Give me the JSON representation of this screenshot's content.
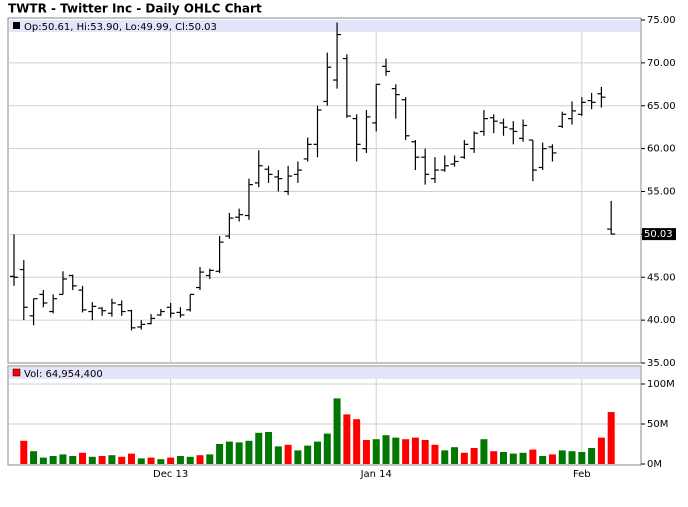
{
  "chart_data": {
    "type": "ohlc",
    "title": "TWTR - Twitter Inc - Daily OHLC Chart",
    "ohlc_legend": "Op:50.61, Hi:53.90, Lo:49.99, Cl:50.03",
    "categories": [
      null,
      null,
      null,
      null,
      null,
      null,
      null,
      null,
      null,
      null,
      null,
      null,
      null,
      null,
      null,
      null,
      "Dec 13",
      null,
      null,
      null,
      null,
      null,
      null,
      null,
      null,
      null,
      null,
      null,
      null,
      null,
      null,
      null,
      null,
      null,
      null,
      null,
      null,
      "Jan 14",
      null,
      null,
      null,
      null,
      null,
      null,
      null,
      null,
      null,
      null,
      null,
      null,
      null,
      null,
      null,
      null,
      null,
      null,
      null,
      null,
      "Feb",
      null,
      null,
      null
    ],
    "open": [
      45.1,
      45.9,
      40.5,
      43.0,
      41.0,
      43.0,
      45.2,
      43.5,
      41.0,
      41.4,
      40.8,
      41.8,
      41.1,
      39.2,
      39.6,
      40.6,
      41.5,
      40.9,
      41.2,
      43.8,
      45.2,
      45.7,
      49.8,
      52,
      52.2,
      56,
      57.6,
      56.7,
      55,
      57,
      58.8,
      60.5,
      65.5,
      68,
      70.5,
      63.5,
      60,
      63,
      69.6,
      67,
      65.7,
      60.8,
      59,
      56.5,
      57.5,
      58.2,
      59,
      60,
      62,
      63.6,
      63,
      62.3,
      61.2,
      61,
      57.8,
      60.2,
      62.6,
      63.5,
      64,
      65.6,
      66.4,
      50.61
    ],
    "high": [
      50,
      47,
      42.5,
      43.5,
      43,
      45.7,
      45.3,
      44,
      42.1,
      41.5,
      42.5,
      42.3,
      41.2,
      40,
      40.7,
      41.3,
      42,
      41.5,
      43,
      46.2,
      46,
      49.8,
      52.5,
      53,
      56.5,
      59.8,
      58,
      57.5,
      58,
      58.5,
      61.3,
      65,
      71.2,
      74.7,
      71,
      64,
      64.5,
      67.5,
      70.5,
      67.5,
      66,
      61,
      60,
      59,
      59.2,
      59.2,
      61,
      62,
      64.5,
      64,
      63.5,
      63.2,
      63.4,
      61,
      60.7,
      60.5,
      64.3,
      65.5,
      66,
      66.5,
      67.2,
      53.9
    ],
    "low": [
      44,
      40,
      39.4,
      41.5,
      40.8,
      43,
      43.5,
      40.9,
      40,
      40.5,
      40.4,
      40.5,
      38.8,
      38.9,
      39.5,
      40.5,
      40.3,
      40.3,
      41,
      43.5,
      44.8,
      45.5,
      49.5,
      51.5,
      51.7,
      55.5,
      56,
      55,
      54.6,
      56,
      58.5,
      59,
      65,
      67,
      63.6,
      58.5,
      59.5,
      62,
      68.5,
      63.5,
      61,
      57.5,
      55.8,
      56,
      57.3,
      57.9,
      58.8,
      59.5,
      61.5,
      61.8,
      61.5,
      60.5,
      60.8,
      56.2,
      57.5,
      58.5,
      62.4,
      62.8,
      63.8,
      64.6,
      64.8,
      49.99
    ],
    "close": [
      45,
      41.5,
      42.5,
      42,
      42.5,
      44.8,
      44,
      41.2,
      41.6,
      41.1,
      42,
      41,
      39.1,
      39.5,
      40.2,
      41,
      40.8,
      40.6,
      43,
      45.6,
      45.8,
      49.1,
      51.9,
      52.3,
      55.8,
      58,
      57,
      56.5,
      56.8,
      57.5,
      60.5,
      64.5,
      69.5,
      73.3,
      63.8,
      60.5,
      63.7,
      67.5,
      69,
      66.3,
      61.5,
      59,
      57,
      57.5,
      58,
      58.5,
      60.5,
      61.8,
      63.5,
      63.2,
      62.5,
      62,
      62.7,
      57.5,
      60,
      59.5,
      64,
      64.4,
      65.4,
      65.4,
      66,
      50.03
    ],
    "color": "#000000",
    "ylim": [
      35,
      75
    ],
    "yticks": [
      {
        "value": 35,
        "label": "35.00"
      },
      {
        "value": 40,
        "label": "40.00"
      },
      {
        "value": 45,
        "label": "45.00"
      },
      {
        "value": 50,
        "label": "50.00"
      },
      {
        "value": 55,
        "label": "55.00"
      },
      {
        "value": 60,
        "label": "60.00"
      },
      {
        "value": 65,
        "label": "65.00"
      },
      {
        "value": 70,
        "label": "70.00"
      },
      {
        "value": 75,
        "label": "75.00"
      }
    ],
    "last_price": {
      "value": 50.03,
      "label": "50.03"
    },
    "grid": true,
    "volume": {
      "legend": "Vol: 64,954,400",
      "legend_color": "#ff0000",
      "values": [
        null,
        29000000,
        16000000,
        8000000,
        10000000,
        12000000,
        10000000,
        14000000,
        9000000,
        10000000,
        11000000,
        9000000,
        13000000,
        7000000,
        8000000,
        6000000,
        8000000,
        10000000,
        9000000,
        11000000,
        12000000,
        25000000,
        28000000,
        27000000,
        29000000,
        39000000,
        40000000,
        22000000,
        24000000,
        17000000,
        23000000,
        28000000,
        38000000,
        82000000,
        62000000,
        56000000,
        30000000,
        31000000,
        36000000,
        33000000,
        31000000,
        33000000,
        30000000,
        24000000,
        17000000,
        21000000,
        14000000,
        20000000,
        31000000,
        16000000,
        15000000,
        13000000,
        14000000,
        18000000,
        10000000,
        12000000,
        17000000,
        16000000,
        15000000,
        20000000,
        33000000,
        64954400
      ],
      "colors": [
        null,
        "#ff0000",
        "#007700",
        "#007700",
        "#007700",
        "#007700",
        "#007700",
        "#ff0000",
        "#007700",
        "#ff0000",
        "#007700",
        "#ff0000",
        "#ff0000",
        "#007700",
        "#ff0000",
        "#007700",
        "#ff0000",
        "#007700",
        "#007700",
        "#ff0000",
        "#007700",
        "#007700",
        "#007700",
        "#007700",
        "#007700",
        "#007700",
        "#007700",
        "#007700",
        "#ff0000",
        "#007700",
        "#007700",
        "#007700",
        "#007700",
        "#007700",
        "#ff0000",
        "#ff0000",
        "#ff0000",
        "#007700",
        "#007700",
        "#007700",
        "#ff0000",
        "#ff0000",
        "#ff0000",
        "#ff0000",
        "#007700",
        "#007700",
        "#ff0000",
        "#ff0000",
        "#007700",
        "#ff0000",
        "#007700",
        "#007700",
        "#007700",
        "#ff0000",
        "#007700",
        "#ff0000",
        "#007700",
        "#007700",
        "#007700",
        "#007700",
        "#ff0000",
        "#ff0000"
      ],
      "ylim": [
        0,
        122500000
      ],
      "yticks": [
        {
          "value": 0,
          "label": "0M"
        },
        {
          "value": 50000000,
          "label": "50M"
        },
        {
          "value": 100000000,
          "label": "100M"
        }
      ]
    }
  }
}
